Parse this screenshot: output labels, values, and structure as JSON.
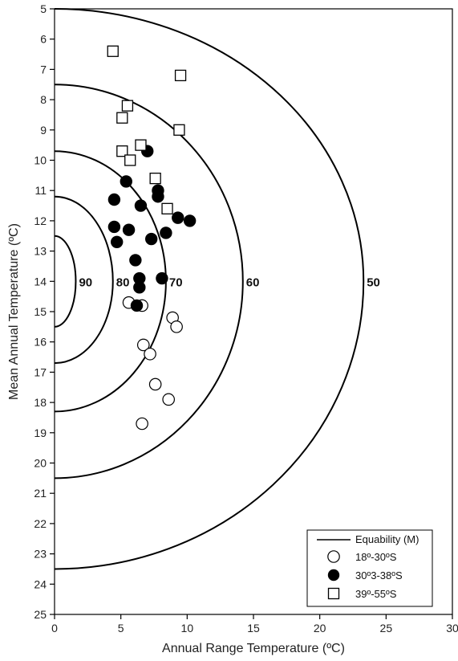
{
  "chart_data": {
    "type": "scatter",
    "xlabel": "Annual Range Temperature (ºC)",
    "ylabel": "Mean Annual Temperature (ºC)",
    "xlim": [
      0,
      30
    ],
    "ylim": [
      5,
      25
    ],
    "y_inverted": true,
    "xticks": [
      "0",
      "5",
      "10",
      "15",
      "20",
      "25",
      "30"
    ],
    "yticks": [
      "5",
      "6",
      "7",
      "8",
      "9",
      "10",
      "11",
      "12",
      "13",
      "14",
      "15",
      "16",
      "17",
      "18",
      "19",
      "20",
      "21",
      "22",
      "23",
      "24",
      "25"
    ],
    "grid": false,
    "legend_position": "bottom-right",
    "equability_curves": {
      "legend_label": "Equability (M)",
      "center_y": 14,
      "curves": [
        {
          "label": "90",
          "intercept_y_low": 12.5,
          "intercept_y_high": 15.5,
          "max_x": 1.6
        },
        {
          "label": "80",
          "intercept_y_low": 11.2,
          "intercept_y_high": 16.7,
          "max_x": 4.4
        },
        {
          "label": "70",
          "intercept_y_low": 9.7,
          "intercept_y_high": 18.3,
          "max_x": 8.4
        },
        {
          "label": "60",
          "intercept_y_low": 7.5,
          "intercept_y_high": 20.5,
          "max_x": 14.2
        },
        {
          "label": "50",
          "intercept_y_low": 5.0,
          "intercept_y_high": 23.5,
          "max_x": 23.3
        }
      ]
    },
    "series": [
      {
        "name": "18º-30ºS",
        "marker": "open-circle",
        "points": [
          [
            5.6,
            14.7
          ],
          [
            6.6,
            14.8
          ],
          [
            8.9,
            15.2
          ],
          [
            9.2,
            15.5
          ],
          [
            6.7,
            16.1
          ],
          [
            7.2,
            16.4
          ],
          [
            7.6,
            17.4
          ],
          [
            8.6,
            17.9
          ],
          [
            6.6,
            18.7
          ]
        ]
      },
      {
        "name": "30º3-38ºS",
        "marker": "filled-circle",
        "points": [
          [
            7.0,
            9.7
          ],
          [
            5.4,
            10.7
          ],
          [
            7.8,
            11.0
          ],
          [
            7.8,
            11.2
          ],
          [
            4.5,
            11.3
          ],
          [
            6.5,
            11.5
          ],
          [
            9.3,
            11.9
          ],
          [
            10.2,
            12.0
          ],
          [
            4.5,
            12.2
          ],
          [
            5.6,
            12.3
          ],
          [
            8.4,
            12.4
          ],
          [
            7.3,
            12.6
          ],
          [
            4.7,
            12.7
          ],
          [
            6.1,
            13.3
          ],
          [
            6.4,
            13.9
          ],
          [
            8.1,
            13.9
          ],
          [
            6.4,
            14.2
          ],
          [
            6.2,
            14.8
          ]
        ]
      },
      {
        "name": "39º-55ºS",
        "marker": "open-square",
        "points": [
          [
            4.4,
            6.4
          ],
          [
            9.5,
            7.2
          ],
          [
            5.5,
            8.2
          ],
          [
            5.1,
            8.6
          ],
          [
            9.4,
            9.0
          ],
          [
            6.5,
            9.5
          ],
          [
            5.1,
            9.7
          ],
          [
            5.7,
            10.0
          ],
          [
            7.6,
            10.6
          ],
          [
            8.5,
            11.6
          ]
        ]
      }
    ]
  }
}
